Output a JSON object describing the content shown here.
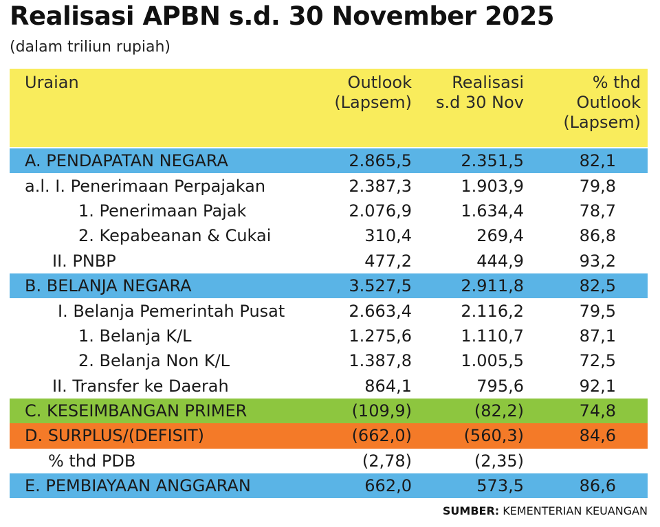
{
  "title": "Realisasi APBN s.d. 30 November 2025",
  "subtitle": "(dalam triliun rupiah)",
  "chart_data": {
    "type": "table",
    "columns": [
      [
        "Uraian"
      ],
      [
        "Outlook",
        "(Lapsem)"
      ],
      [
        "Realisasi",
        "s.d 30 Nov"
      ],
      [
        "% thd",
        "Outlook",
        "(Lapsem)"
      ]
    ],
    "rows": [
      {
        "label": "A. PENDAPATAN NEGARA",
        "outlook": "2.865,5",
        "realisasi": "2.351,5",
        "pct": "82,1",
        "highlight": "#5ab4e6"
      },
      {
        "label": "a.l. I. Penerimaan Perpajakan",
        "outlook": "2.387,3",
        "realisasi": "1.903,9",
        "pct": "79,8",
        "highlight": ""
      },
      {
        "label": "1. Penerimaan Pajak",
        "outlook": "2.076,9",
        "realisasi": "1.634,4",
        "pct": "78,7",
        "highlight": ""
      },
      {
        "label": "2. Kepabeanan & Cukai",
        "outlook": "310,4",
        "realisasi": "269,4",
        "pct": "86,8",
        "highlight": ""
      },
      {
        "label": "II. PNBP",
        "outlook": "477,2",
        "realisasi": "444,9",
        "pct": "93,2",
        "highlight": ""
      },
      {
        "label": "B. BELANJA NEGARA",
        "outlook": "3.527,5",
        "realisasi": "2.911,8",
        "pct": "82,5",
        "highlight": "#5ab4e6"
      },
      {
        "label": "I. Belanja Pemerintah Pusat",
        "outlook": "2.663,4",
        "realisasi": "2.116,2",
        "pct": "79,5",
        "highlight": ""
      },
      {
        "label": "1. Belanja K/L",
        "outlook": "1.275,6",
        "realisasi": "1.110,7",
        "pct": "87,1",
        "highlight": ""
      },
      {
        "label": "2. Belanja Non K/L",
        "outlook": "1.387,8",
        "realisasi": "1.005,5",
        "pct": "72,5",
        "highlight": ""
      },
      {
        "label": "II. Transfer ke Daerah",
        "outlook": "864,1",
        "realisasi": "795,6",
        "pct": "92,1",
        "highlight": ""
      },
      {
        "label": "C. KESEIMBANGAN PRIMER",
        "outlook": "(109,9)",
        "realisasi": "(82,2)",
        "pct": "74,8",
        "highlight": "#8dc63f"
      },
      {
        "label": "D. SURPLUS/(DEFISIT)",
        "outlook": "(662,0)",
        "realisasi": "(560,3)",
        "pct": "84,6",
        "highlight": "#f47a28"
      },
      {
        "label": "% thd PDB",
        "outlook": "(2,78)",
        "realisasi": "(2,35)",
        "pct": "",
        "highlight": ""
      },
      {
        "label": "E. PEMBIAYAAN ANGGARAN",
        "outlook": "662,0",
        "realisasi": "573,5",
        "pct": "86,6",
        "highlight": "#5ab4e6"
      }
    ]
  },
  "source": {
    "prefix": "SUMBER:",
    "text": " KEMENTERIAN KEUANGAN"
  },
  "colors": {
    "header": "#f9ec5c",
    "blue": "#5ab4e6",
    "green": "#8dc63f",
    "orange": "#f47a28"
  }
}
